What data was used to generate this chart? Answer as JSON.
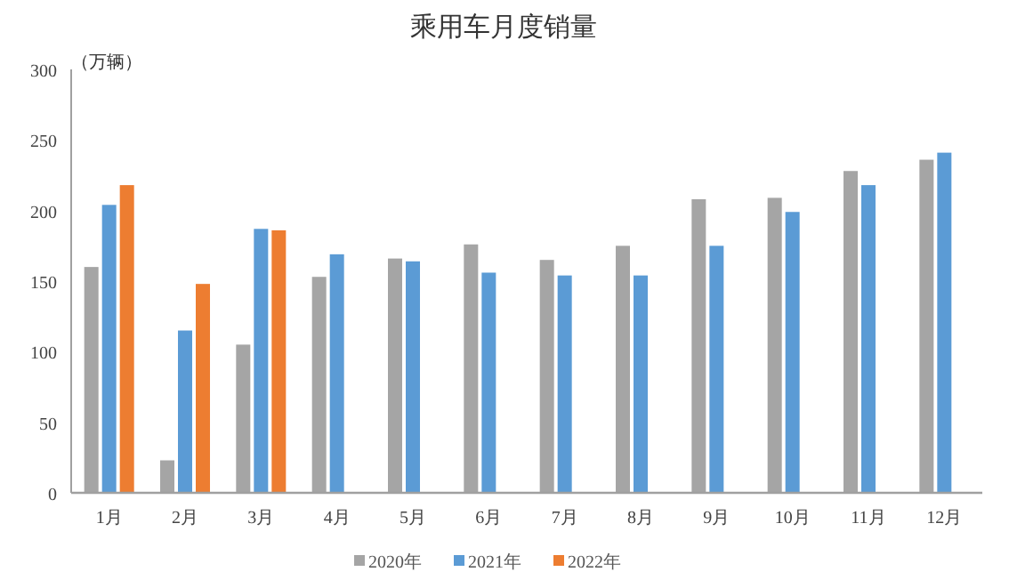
{
  "chart_data": {
    "type": "bar",
    "title": "乘用车月度销量",
    "ylabel": "（万辆）",
    "categories": [
      "1月",
      "2月",
      "3月",
      "4月",
      "5月",
      "6月",
      "7月",
      "8月",
      "9月",
      "10月",
      "11月",
      "12月"
    ],
    "series": [
      {
        "name": "2020年",
        "color": "#a5a5a5",
        "values": [
          160,
          23,
          105,
          153,
          166,
          176,
          165,
          175,
          208,
          209,
          228,
          236
        ]
      },
      {
        "name": "2021年",
        "color": "#5b9bd5",
        "values": [
          204,
          115,
          187,
          169,
          164,
          156,
          154,
          154,
          175,
          199,
          218,
          241
        ]
      },
      {
        "name": "2022年",
        "color": "#ed7d31",
        "values": [
          218,
          148,
          186,
          null,
          null,
          null,
          null,
          null,
          null,
          null,
          null,
          null
        ]
      }
    ],
    "ylim": [
      0,
      300
    ],
    "yticks": [
      0,
      50,
      100,
      150,
      200,
      250,
      300
    ],
    "grid": false,
    "legend": "bottom"
  }
}
